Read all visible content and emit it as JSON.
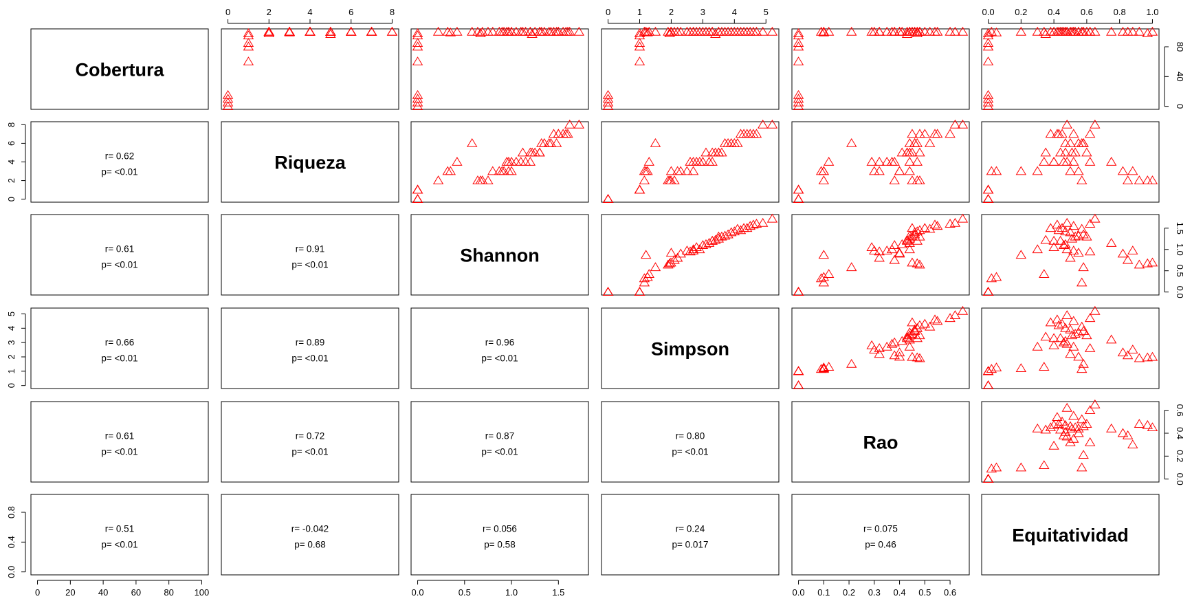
{
  "chart_data": {
    "type": "scatter-matrix",
    "marker": "triangle",
    "marker_color": "#ff0000",
    "variables": [
      "Cobertura",
      "Riqueza",
      "Shannon",
      "Simpson",
      "Rao",
      "Equitatividad"
    ],
    "axes": [
      {
        "name": "Cobertura",
        "range": [
          0,
          100
        ],
        "ticks": [
          0,
          20,
          40,
          60,
          80,
          100
        ],
        "tick_labels": [
          "0",
          "20",
          "40",
          "60",
          "80",
          "100"
        ]
      },
      {
        "name": "Riqueza",
        "range": [
          0,
          8
        ],
        "ticks": [
          0,
          2,
          4,
          6,
          8
        ],
        "tick_labels": [
          "0",
          "2",
          "4",
          "6",
          "8"
        ]
      },
      {
        "name": "Shannon",
        "range": [
          0,
          1.75
        ],
        "ticks": [
          0,
          0.5,
          1.0,
          1.5
        ],
        "tick_labels": [
          "0.0",
          "0.5",
          "1.0",
          "1.5"
        ]
      },
      {
        "name": "Simpson",
        "range": [
          0,
          5.2
        ],
        "ticks": [
          0,
          1,
          2,
          3,
          4,
          5
        ],
        "tick_labels": [
          "0",
          "1",
          "2",
          "3",
          "4",
          "5"
        ]
      },
      {
        "name": "Rao",
        "range": [
          0,
          0.65
        ],
        "ticks": [
          0,
          0.1,
          0.2,
          0.3,
          0.4,
          0.5,
          0.6
        ],
        "tick_labels": [
          "0.0",
          "0.1",
          "0.2",
          "0.3",
          "0.4",
          "0.5",
          "0.6"
        ]
      },
      {
        "name": "Equitatividad",
        "range": [
          0,
          1
        ],
        "ticks": [
          0,
          0.2,
          0.4,
          0.6,
          0.8,
          1.0
        ],
        "tick_labels": [
          "0.0",
          "0.2",
          "0.4",
          "0.6",
          "0.8",
          "1.0"
        ]
      }
    ],
    "axis_layout": {
      "top": [
        1,
        3,
        5
      ],
      "bottom": [
        0,
        2,
        4
      ],
      "right": [
        0,
        2,
        4
      ],
      "left": [
        1,
        3,
        5
      ],
      "right_ticks_override": {
        "0": [
          0,
          40,
          80
        ],
        "2": [
          0,
          0.5,
          1.0,
          1.5
        ],
        "4": [
          0,
          0.2,
          0.4,
          0.6
        ]
      },
      "right_labels_override": {
        "0": [
          "0",
          "40",
          "80"
        ],
        "2": [
          "0.0",
          "0.5",
          "1.0",
          "1.5"
        ],
        "4": [
          "0.0",
          "0.2",
          "0.4",
          "0.6"
        ]
      },
      "left_ticks_override": {
        "5": [
          0,
          0.4,
          0.8
        ]
      },
      "left_labels_override": {
        "5": [
          "0.0",
          "0.4",
          "0.8"
        ]
      }
    },
    "correlations": [
      {
        "row": 1,
        "col": 0,
        "r": "r= 0.62",
        "p": "p= <0.01"
      },
      {
        "row": 2,
        "col": 0,
        "r": "r= 0.61",
        "p": "p= <0.01"
      },
      {
        "row": 2,
        "col": 1,
        "r": "r= 0.91",
        "p": "p= <0.01"
      },
      {
        "row": 3,
        "col": 0,
        "r": "r= 0.66",
        "p": "p= <0.01"
      },
      {
        "row": 3,
        "col": 1,
        "r": "r= 0.89",
        "p": "p= <0.01"
      },
      {
        "row": 3,
        "col": 2,
        "r": "r= 0.96",
        "p": "p= <0.01"
      },
      {
        "row": 4,
        "col": 0,
        "r": "r= 0.61",
        "p": "p= <0.01"
      },
      {
        "row": 4,
        "col": 1,
        "r": "r= 0.72",
        "p": "p= <0.01"
      },
      {
        "row": 4,
        "col": 2,
        "r": "r= 0.87",
        "p": "p= <0.01"
      },
      {
        "row": 4,
        "col": 3,
        "r": "r= 0.80",
        "p": "p= <0.01"
      },
      {
        "row": 5,
        "col": 0,
        "r": "r= 0.51",
        "p": "p= <0.01"
      },
      {
        "row": 5,
        "col": 1,
        "r": "r= -0.042",
        "p": "p= 0.68"
      },
      {
        "row": 5,
        "col": 2,
        "r": "r= 0.056",
        "p": "p= 0.58"
      },
      {
        "row": 5,
        "col": 3,
        "r": "r= 0.24",
        "p": "p= 0.017"
      },
      {
        "row": 5,
        "col": 4,
        "r": "r= 0.075",
        "p": "p= 0.46"
      }
    ],
    "observations": {
      "fields": [
        "Cobertura",
        "Riqueza",
        "Shannon",
        "Simpson",
        "Rao",
        "Equitatividad"
      ],
      "rows": [
        [
          0,
          0,
          0.0,
          0.0,
          0.0,
          0.0
        ],
        [
          5,
          0,
          0.0,
          0.0,
          0.0,
          0.0
        ],
        [
          10,
          0,
          0.0,
          0.0,
          0.0,
          0.0
        ],
        [
          15,
          0,
          0.0,
          0.0,
          0.0,
          0.0
        ],
        [
          60,
          1,
          0.0,
          1.0,
          0.0,
          0.0
        ],
        [
          80,
          1,
          0.0,
          1.0,
          0.0,
          0.0
        ],
        [
          85,
          1,
          0.0,
          1.0,
          0.0,
          0.0
        ],
        [
          95,
          1,
          0.0,
          1.0,
          0.0,
          0.0
        ],
        [
          98,
          1,
          0.0,
          1.0,
          0.0,
          0.0
        ],
        [
          100,
          2,
          0.64,
          1.9,
          0.48,
          0.92
        ],
        [
          98,
          2,
          0.67,
          1.95,
          0.47,
          0.97
        ],
        [
          100,
          2,
          0.69,
          1.99,
          0.45,
          1.0
        ],
        [
          100,
          3,
          0.87,
          1.2,
          0.1,
          0.2
        ],
        [
          100,
          3,
          0.32,
          1.15,
          0.09,
          0.02
        ],
        [
          99,
          3,
          0.35,
          1.25,
          0.1,
          0.05
        ],
        [
          100,
          4,
          0.42,
          1.3,
          0.12,
          0.34
        ],
        [
          100,
          2,
          0.22,
          1.15,
          0.1,
          0.57
        ],
        [
          100,
          3,
          0.92,
          2.0,
          0.4,
          0.55
        ],
        [
          100,
          6,
          0.58,
          1.5,
          0.21,
          0.58
        ],
        [
          100,
          3,
          0.97,
          2.5,
          0.3,
          0.88
        ],
        [
          100,
          4,
          0.95,
          2.6,
          0.32,
          0.62
        ],
        [
          100,
          4,
          0.97,
          2.7,
          0.35,
          0.52
        ],
        [
          100,
          4,
          1.0,
          2.9,
          0.37,
          0.48
        ],
        [
          100,
          4,
          1.1,
          3.0,
          0.38,
          0.46
        ],
        [
          100,
          3,
          0.8,
          2.2,
          0.32,
          0.5
        ],
        [
          100,
          5,
          1.12,
          3.1,
          0.41,
          0.47
        ],
        [
          100,
          5,
          1.2,
          3.3,
          0.43,
          0.44
        ],
        [
          100,
          5,
          1.25,
          3.5,
          0.44,
          0.51
        ],
        [
          100,
          5,
          1.3,
          3.6,
          0.45,
          0.53
        ],
        [
          100,
          4,
          1.05,
          2.8,
          0.29,
          0.4
        ],
        [
          100,
          6,
          1.32,
          3.7,
          0.44,
          0.55
        ],
        [
          100,
          6,
          1.35,
          3.8,
          0.46,
          0.58
        ],
        [
          100,
          6,
          1.42,
          4.0,
          0.47,
          0.47
        ],
        [
          100,
          7,
          1.45,
          4.2,
          0.48,
          0.43
        ],
        [
          100,
          7,
          1.5,
          4.3,
          0.5,
          0.45
        ],
        [
          100,
          7,
          1.55,
          4.5,
          0.55,
          0.52
        ],
        [
          100,
          7,
          1.6,
          4.7,
          0.6,
          0.62
        ],
        [
          100,
          8,
          1.62,
          4.9,
          0.62,
          0.48
        ],
        [
          100,
          8,
          1.72,
          5.2,
          0.65,
          0.65
        ],
        [
          97,
          5,
          1.22,
          3.4,
          0.43,
          0.35
        ],
        [
          100,
          6,
          1.4,
          3.9,
          0.46,
          0.5
        ],
        [
          100,
          7,
          1.5,
          4.4,
          0.45,
          0.38
        ],
        [
          100,
          3,
          0.9,
          2.3,
          0.4,
          0.82
        ],
        [
          100,
          4,
          1.15,
          3.2,
          0.44,
          0.75
        ],
        [
          100,
          2,
          0.75,
          2.1,
          0.38,
          0.85
        ],
        [
          100,
          5,
          1.3,
          3.5,
          0.48,
          0.6
        ],
        [
          100,
          6,
          1.48,
          4.1,
          0.52,
          0.57
        ],
        [
          100,
          3,
          1.0,
          2.7,
          0.44,
          0.3
        ],
        [
          100,
          4,
          1.2,
          3.3,
          0.47,
          0.4
        ],
        [
          100,
          7,
          1.58,
          4.6,
          0.54,
          0.42
        ]
      ]
    }
  }
}
